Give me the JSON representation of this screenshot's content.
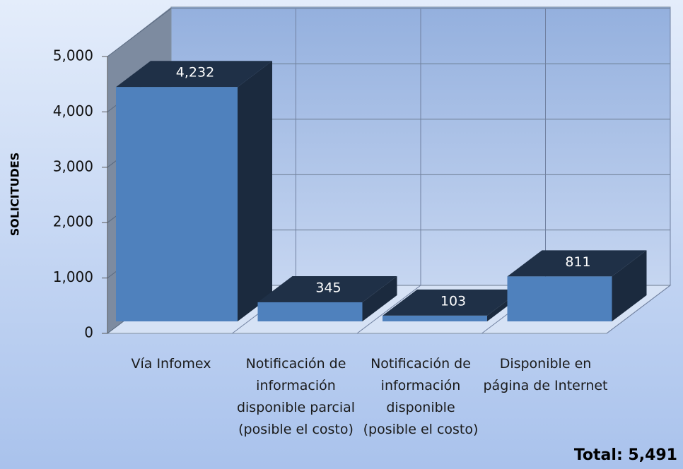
{
  "chart_data": {
    "type": "bar3d",
    "ylabel": "SOLICITUDES",
    "categories": [
      "Vía Infomex",
      "Notificación de información disponible parcial (posible el costo)",
      "Notificación de información disponible (posible el costo)",
      "Disponible en página de Internet"
    ],
    "values": [
      4232,
      345,
      103,
      811
    ],
    "value_labels": [
      "4,232",
      "345",
      "103",
      "811"
    ],
    "color": "#4f81bd",
    "ylim": [
      0,
      5000
    ],
    "yticks": [
      0,
      {
        "value": 1000,
        "label": "1,000"
      },
      {
        "value": 2000,
        "label": "2,000"
      },
      {
        "value": 3000,
        "label": "3,000"
      },
      {
        "value": 4000,
        "label": "4,000"
      },
      {
        "value": 5000,
        "label": "5,000"
      }
    ],
    "grid": true,
    "annotation": "Total: 5,491"
  }
}
